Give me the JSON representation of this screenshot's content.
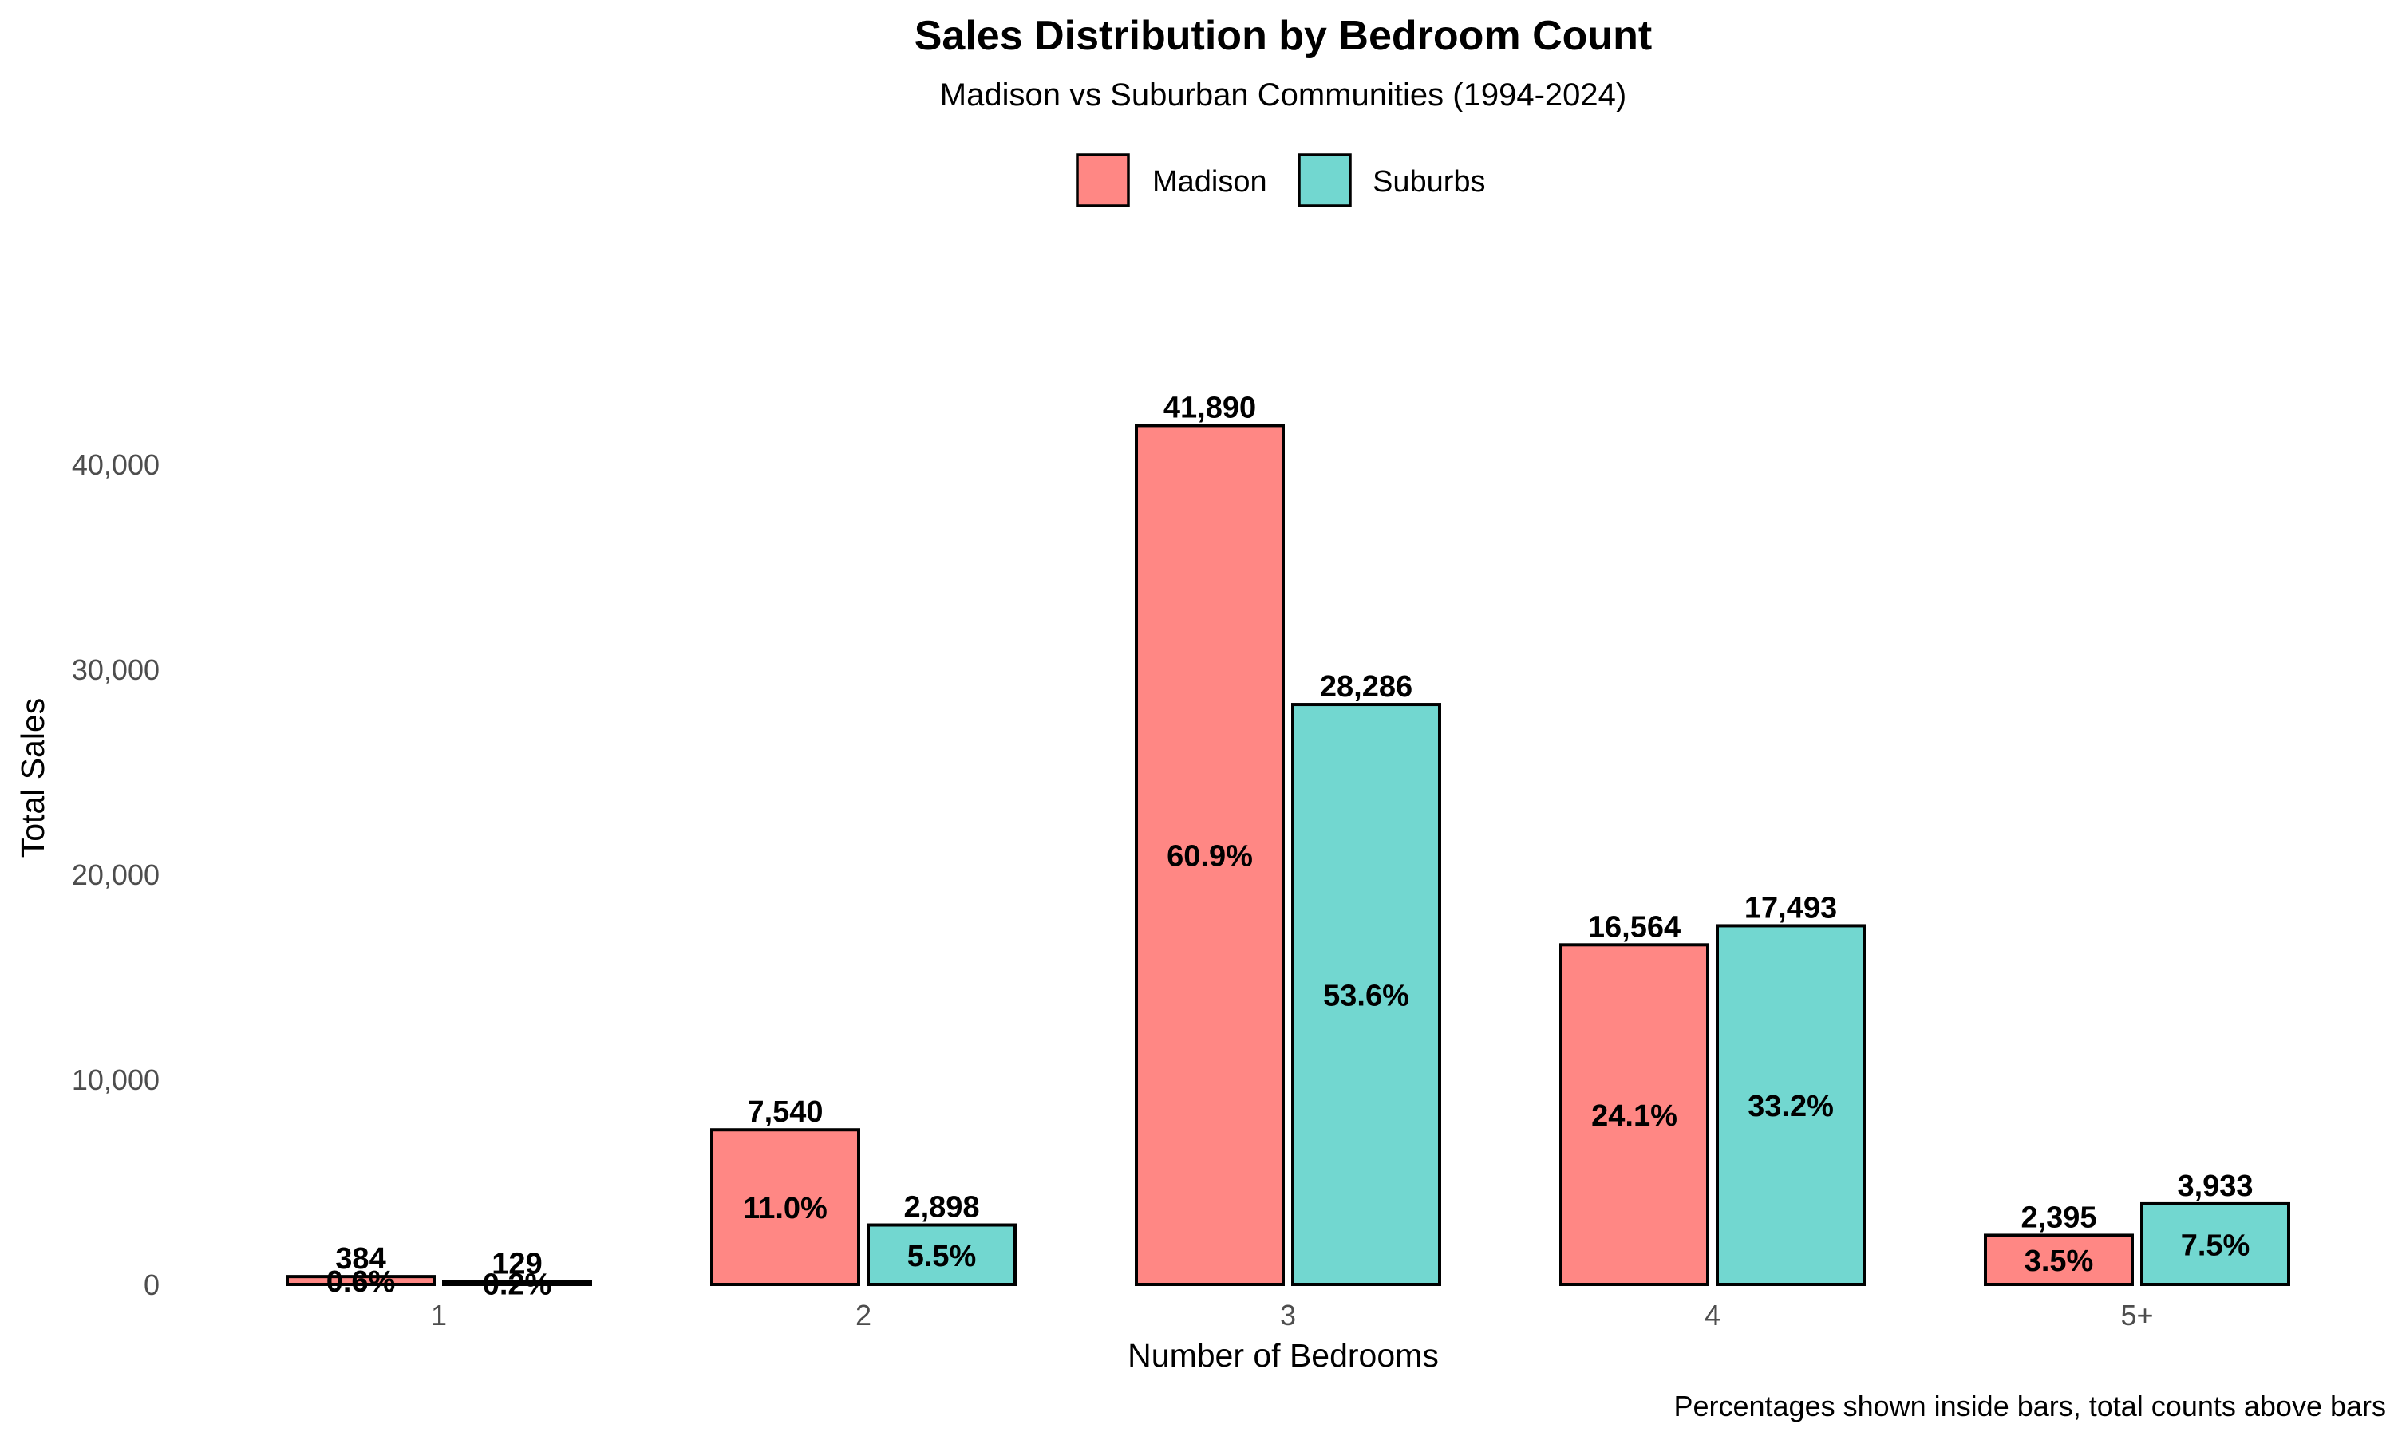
{
  "chart_data": {
    "type": "bar",
    "title": "Sales Distribution by Bedroom Count",
    "subtitle": "Madison vs Suburban Communities (1994-2024)",
    "xlabel": "Number of Bedrooms",
    "ylabel": "Total Sales",
    "caption": "Percentages shown inside bars, total counts above bars",
    "categories": [
      "1",
      "2",
      "3",
      "4",
      "5+"
    ],
    "y_ticks": [
      0,
      10000,
      20000,
      30000,
      40000
    ],
    "y_tick_labels": [
      "0",
      "10,000",
      "20,000",
      "30,000",
      "40,000"
    ],
    "ylim": [
      0,
      42000
    ],
    "grid": false,
    "legend_position": "top",
    "series": [
      {
        "name": "Madison",
        "color": "#FF8784",
        "values": [
          384,
          7540,
          41890,
          16564,
          2395
        ],
        "count_labels": [
          "384",
          "7,540",
          "41,890",
          "16,564",
          "2,395"
        ],
        "pct_labels": [
          "0.6%",
          "11.0%",
          "60.9%",
          "24.1%",
          "3.5%"
        ]
      },
      {
        "name": "Suburbs",
        "color": "#72D7D0",
        "values": [
          129,
          2898,
          28286,
          17493,
          3933
        ],
        "count_labels": [
          "129",
          "2,898",
          "28,286",
          "17,493",
          "3,933"
        ],
        "pct_labels": [
          "0.2%",
          "5.5%",
          "53.6%",
          "33.2%",
          "7.5%"
        ]
      }
    ]
  }
}
